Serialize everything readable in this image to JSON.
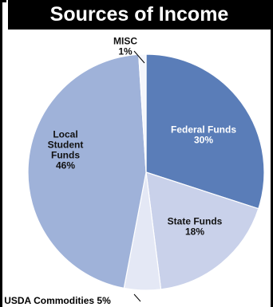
{
  "chart_data": {
    "type": "pie",
    "title": "Sources of Income",
    "slices": [
      {
        "label": "Federal Funds",
        "value": 30,
        "display": "30%",
        "color": "#5a7db8",
        "text_color": "#ffffff"
      },
      {
        "label": "State Funds",
        "value": 18,
        "display": "18%",
        "color": "#c9d1ea",
        "text_color": "#111111"
      },
      {
        "label": "USDA Commodities",
        "value": 5,
        "display": "5%",
        "color": "#e4e8f5",
        "text_color": "#111111"
      },
      {
        "label": "Local Student Funds",
        "value": 46,
        "display": "46%",
        "color": "#9fb2d9",
        "text_color": "#111111"
      },
      {
        "label": "MISC",
        "value": 1,
        "display": "1%",
        "color": "#f4f6fc",
        "text_color": "#111111"
      }
    ],
    "start": "12 o'clock",
    "direction": "clockwise"
  },
  "colors": {
    "title_background": "#000000",
    "title_text": "#ffffff",
    "frame": "#000000"
  }
}
